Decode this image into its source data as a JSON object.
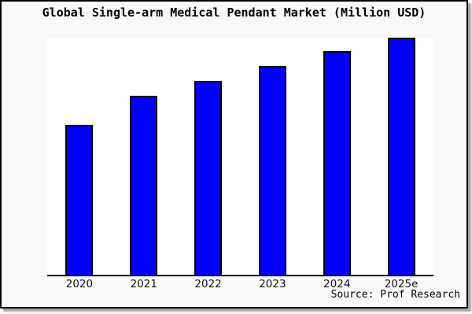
{
  "title": "Global Single-arm Medical Pendant Market (Million USD)",
  "source_note": "Source: Prof Research",
  "frame": {
    "background": "#f9f9f9",
    "plot_background": "#ffffff",
    "border_color": "#000000",
    "shadow": "bottom-right gray drop shadow"
  },
  "chart_data": {
    "type": "bar",
    "title": "Global Single-arm Medical Pendant Market (Million USD)",
    "categories": [
      "2020",
      "2021",
      "2022",
      "2023",
      "2024",
      "2025e"
    ],
    "values": [
      100,
      120,
      130,
      140,
      150,
      159
    ],
    "values_note": "y-axis has no tick labels; values are estimated relative bar heights indexed to 2020 = 100",
    "xlabel": "",
    "ylabel": "",
    "ylim": [
      0,
      160
    ],
    "grid": false,
    "legend": false,
    "y_axis_visible": false,
    "x_axis_line_color": "#000000",
    "bar_color": "#0000ff",
    "bar_border_color": "#000000",
    "source": "Source: Prof Research"
  }
}
